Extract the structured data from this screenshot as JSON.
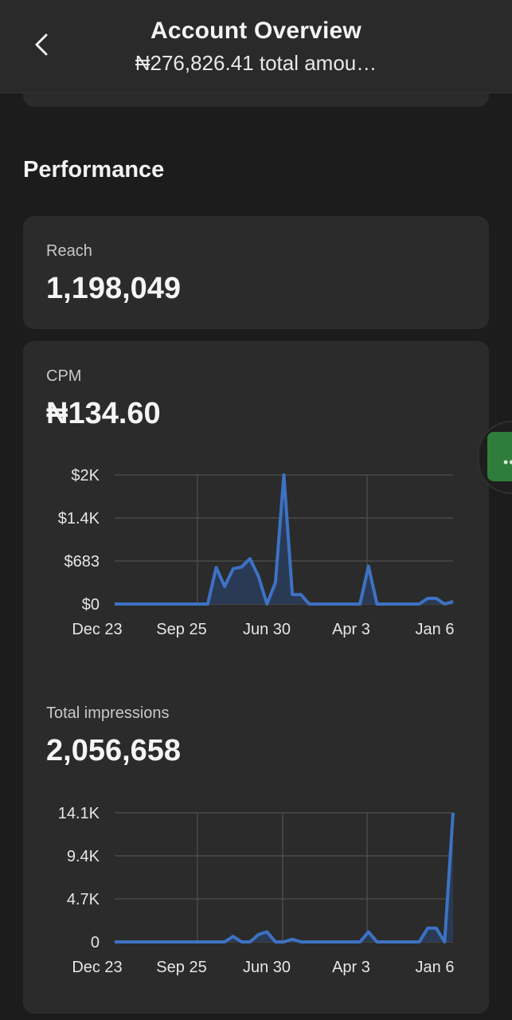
{
  "header": {
    "title": "Account Overview",
    "subtitle": "₦276,826.41 total amou…"
  },
  "section": {
    "title": "Performance"
  },
  "reach": {
    "label": "Reach",
    "value": "1,198,049"
  },
  "cpm": {
    "label": "CPM",
    "value": "₦134.60",
    "chart_data": {
      "type": "area",
      "y_tick_labels": [
        "$0",
        "$683",
        "$1.4K",
        "$2K"
      ],
      "x_tick_labels": [
        "Dec 23",
        "Sep 25",
        "Jun 30",
        "Apr 3",
        "Jan 6"
      ],
      "ylim": [
        0,
        2049
      ],
      "values": [
        0,
        0,
        0,
        0,
        0,
        0,
        0,
        0,
        0,
        0,
        0,
        0,
        580,
        280,
        560,
        590,
        720,
        440,
        0,
        340,
        2050,
        150,
        150,
        0,
        0,
        0,
        0,
        0,
        0,
        0,
        600,
        0,
        0,
        0,
        0,
        0,
        0,
        90,
        90,
        0,
        40
      ],
      "color": "#3d72c4"
    }
  },
  "impressions": {
    "label": "Total impressions",
    "value": "2,056,658",
    "chart_data": {
      "type": "area",
      "y_tick_labels": [
        "0",
        "4.7K",
        "9.4K",
        "14.1K"
      ],
      "x_tick_labels": [
        "Dec 23",
        "Sep 25",
        "Jun 30",
        "Apr 3",
        "Jan 6"
      ],
      "ylim": [
        0,
        14100
      ],
      "values": [
        0,
        0,
        0,
        0,
        0,
        0,
        0,
        0,
        0,
        0,
        0,
        0,
        0,
        0,
        600,
        0,
        0,
        800,
        1100,
        0,
        0,
        300,
        0,
        0,
        0,
        0,
        0,
        0,
        0,
        0,
        1100,
        0,
        0,
        0,
        0,
        0,
        0,
        1500,
        1500,
        0,
        14100
      ],
      "color": "#3d72c4"
    }
  },
  "icons": {
    "back": "chevron-left-icon",
    "more": "more-dots-icon"
  }
}
